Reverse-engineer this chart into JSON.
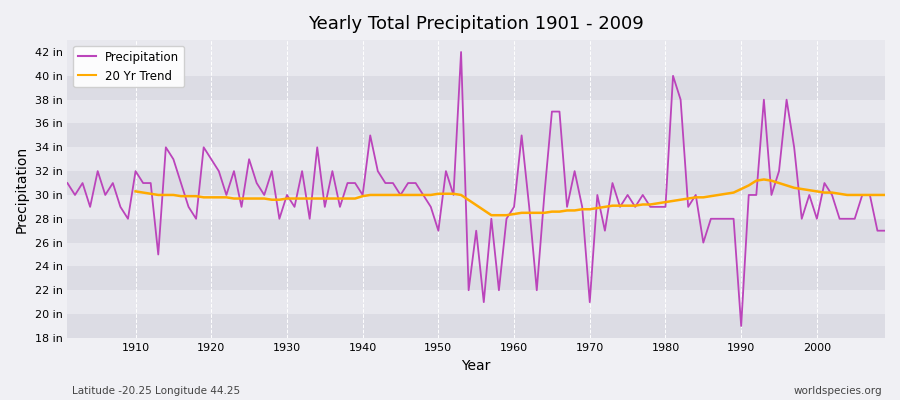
{
  "title": "Yearly Total Precipitation 1901 - 2009",
  "xlabel": "Year",
  "ylabel": "Precipitation",
  "subtitle_left": "Latitude -20.25 Longitude 44.25",
  "subtitle_right": "worldspecies.org",
  "bg_color": "#f0f0f4",
  "plot_bg_color": "#e8e8ee",
  "precip_color": "#bb44bb",
  "trend_color": "#ffaa00",
  "ylim": [
    18,
    43
  ],
  "years": [
    1901,
    1902,
    1903,
    1904,
    1905,
    1906,
    1907,
    1908,
    1909,
    1910,
    1911,
    1912,
    1913,
    1914,
    1915,
    1916,
    1917,
    1918,
    1919,
    1920,
    1921,
    1922,
    1923,
    1924,
    1925,
    1926,
    1927,
    1928,
    1929,
    1930,
    1931,
    1932,
    1933,
    1934,
    1935,
    1936,
    1937,
    1938,
    1939,
    1940,
    1941,
    1942,
    1943,
    1944,
    1945,
    1946,
    1947,
    1948,
    1949,
    1950,
    1951,
    1952,
    1953,
    1954,
    1955,
    1956,
    1957,
    1958,
    1959,
    1960,
    1961,
    1962,
    1963,
    1964,
    1965,
    1966,
    1967,
    1968,
    1969,
    1970,
    1971,
    1972,
    1973,
    1974,
    1975,
    1976,
    1977,
    1978,
    1979,
    1980,
    1981,
    1982,
    1983,
    1984,
    1985,
    1986,
    1987,
    1988,
    1989,
    1990,
    1991,
    1992,
    1993,
    1994,
    1995,
    1996,
    1997,
    1998,
    1999,
    2000,
    2001,
    2002,
    2003,
    2004,
    2005,
    2006,
    2007,
    2008,
    2009
  ],
  "precip": [
    31,
    30,
    31,
    29,
    32,
    30,
    31,
    29,
    28,
    32,
    31,
    31,
    25,
    34,
    33,
    31,
    29,
    28,
    34,
    33,
    32,
    30,
    32,
    29,
    33,
    31,
    30,
    32,
    28,
    30,
    29,
    32,
    28,
    34,
    29,
    32,
    29,
    31,
    31,
    30,
    35,
    32,
    31,
    31,
    30,
    31,
    31,
    30,
    29,
    27,
    32,
    30,
    42,
    22,
    27,
    21,
    28,
    22,
    28,
    29,
    35,
    29,
    22,
    30,
    37,
    37,
    29,
    32,
    29,
    21,
    30,
    27,
    31,
    29,
    30,
    29,
    30,
    29,
    29,
    29,
    40,
    38,
    29,
    30,
    26,
    28,
    28,
    28,
    28,
    19,
    30,
    30,
    38,
    30,
    32,
    38,
    34,
    28,
    30,
    28,
    31,
    30,
    28,
    28,
    28,
    30,
    30,
    27,
    27
  ],
  "trend_years": [
    1910,
    1911,
    1912,
    1913,
    1914,
    1915,
    1916,
    1917,
    1918,
    1919,
    1920,
    1921,
    1922,
    1923,
    1924,
    1925,
    1926,
    1927,
    1928,
    1929,
    1930,
    1931,
    1932,
    1933,
    1934,
    1935,
    1936,
    1937,
    1938,
    1939,
    1940,
    1941,
    1942,
    1943,
    1944,
    1945,
    1946,
    1947,
    1948,
    1949,
    1950,
    1951,
    1952,
    1953,
    1957,
    1958,
    1959,
    1960,
    1961,
    1962,
    1963,
    1964,
    1965,
    1966,
    1967,
    1968,
    1969,
    1970,
    1971,
    1972,
    1973,
    1974,
    1975,
    1976,
    1977,
    1978,
    1979,
    1980,
    1981,
    1982,
    1983,
    1984,
    1985,
    1986,
    1987,
    1988,
    1989,
    1990,
    1991,
    1992,
    1993,
    1994,
    1995,
    1996,
    1997,
    1998,
    1999,
    2000,
    2001,
    2002,
    2003,
    2004,
    2005,
    2006,
    2007,
    2008,
    2009
  ],
  "trend": [
    30.3,
    30.2,
    30.1,
    30.0,
    30.0,
    30.0,
    29.9,
    29.9,
    29.9,
    29.8,
    29.8,
    29.8,
    29.8,
    29.7,
    29.7,
    29.7,
    29.7,
    29.7,
    29.6,
    29.6,
    29.7,
    29.7,
    29.7,
    29.7,
    29.7,
    29.7,
    29.7,
    29.7,
    29.7,
    29.7,
    29.9,
    30.0,
    30.0,
    30.0,
    30.0,
    30.0,
    30.0,
    30.0,
    30.0,
    30.0,
    30.1,
    30.1,
    30.1,
    30.0,
    28.3,
    28.3,
    28.3,
    28.4,
    28.5,
    28.5,
    28.5,
    28.5,
    28.6,
    28.6,
    28.7,
    28.7,
    28.8,
    28.8,
    28.9,
    29.0,
    29.1,
    29.1,
    29.1,
    29.1,
    29.2,
    29.2,
    29.3,
    29.4,
    29.5,
    29.6,
    29.7,
    29.8,
    29.8,
    29.9,
    30.0,
    30.1,
    30.2,
    30.5,
    30.8,
    31.2,
    31.3,
    31.2,
    31.0,
    30.8,
    30.6,
    30.5,
    30.4,
    30.3,
    30.2,
    30.2,
    30.1,
    30.0,
    30.0,
    30.0,
    30.0,
    30.0,
    30.0
  ],
  "band_colors": [
    "#dcdce4",
    "#e8e8ee"
  ],
  "yticks": [
    18,
    20,
    22,
    24,
    26,
    28,
    30,
    32,
    34,
    36,
    38,
    40,
    42
  ]
}
